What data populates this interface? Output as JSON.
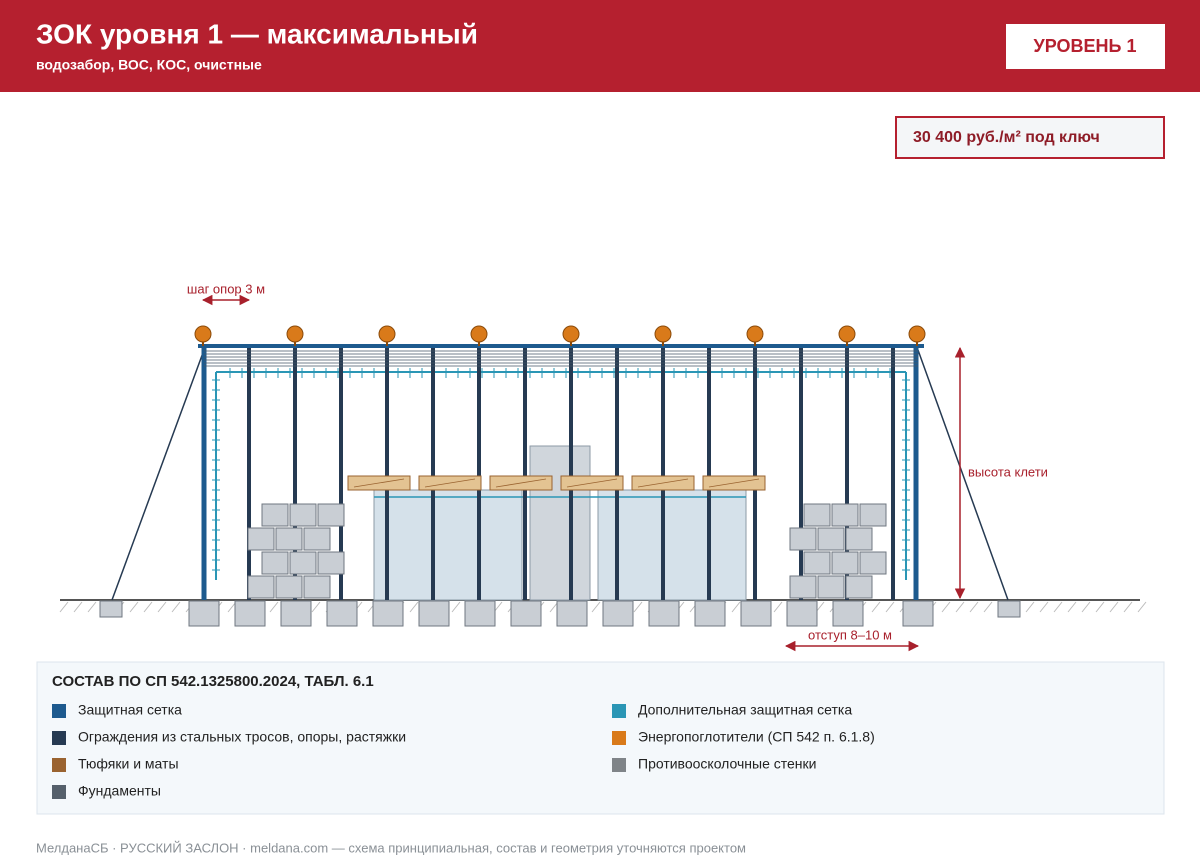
{
  "header": {
    "title": "ЗОК уровня 1 — максимальный",
    "subtitle": "водозабор, ВОС, КОС, очистные",
    "badge": "УРОВЕНЬ 1"
  },
  "price": "30 400 руб./м² под ключ",
  "diagram": {
    "step_label": "шаг опор 3 м",
    "height_label": "высота клети",
    "offset_label": "отступ 8–10 м"
  },
  "legend": {
    "title": "СОСТАВ ПО СП 542.1325800.2024, ТАБЛ. 6.1",
    "items": [
      {
        "label": "Защитная сетка",
        "color": "#1d5a8e"
      },
      {
        "label": "Дополнительная защитная сетка",
        "color": "#2a96b5"
      },
      {
        "label": "Ограждения из стальных тросов, опоры, растяжки",
        "color": "#263a52"
      },
      {
        "label": "Энергопоглотители (СП 542 п. 6.1.8)",
        "color": "#d97a1a"
      },
      {
        "label": "Тюфяки и маты",
        "color": "#9a6330"
      },
      {
        "label": "Противоосколочные стенки",
        "color": "#7f8488"
      },
      {
        "label": "Фундаменты",
        "color": "#55606b"
      }
    ]
  },
  "footer": "МелданаСБ · РУССКИЙ ЗАСЛОН · meldana.com — схема принципиальная, состав и геометрия уточняются проектом"
}
